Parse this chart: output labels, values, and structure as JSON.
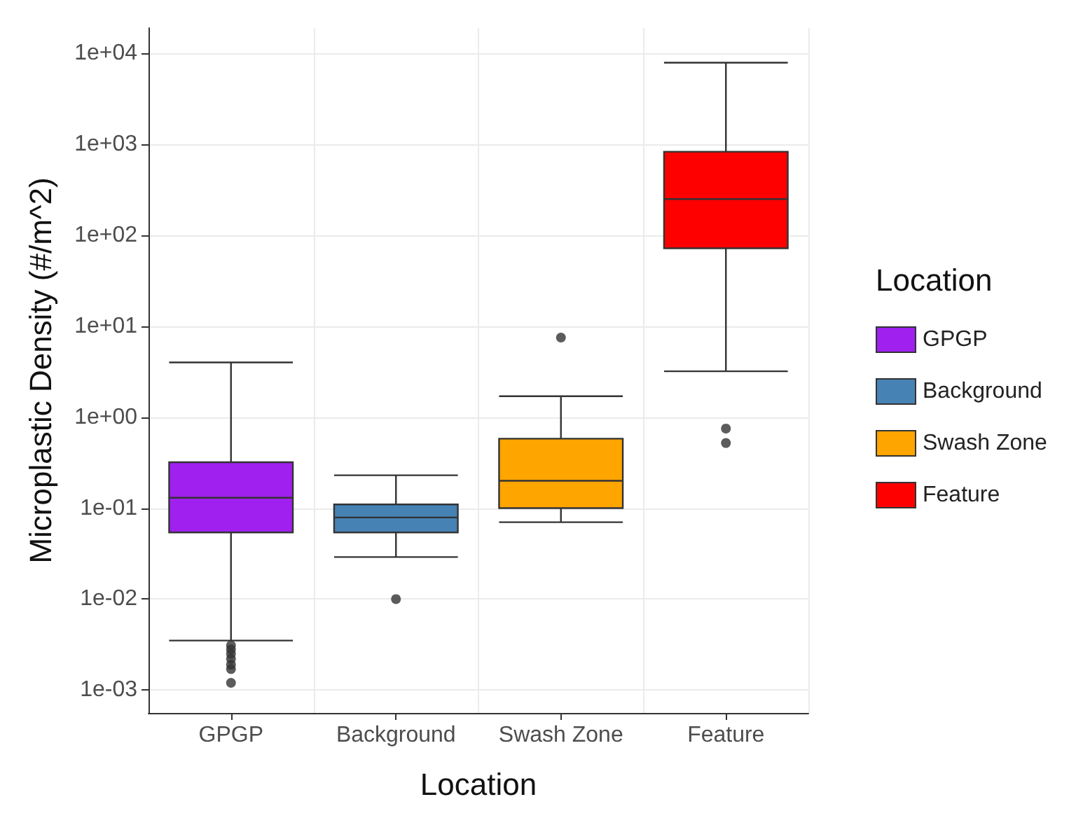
{
  "chart_data": {
    "type": "box",
    "xlabel": "Location",
    "ylabel": "Microplastic Density (#/m^2)",
    "legend_title": "Location",
    "legend": "right",
    "grid": true,
    "log": "y",
    "categories": [
      "GPGP",
      "Background",
      "Swash Zone",
      "Feature"
    ],
    "series": [
      {
        "name": "GPGP",
        "color": "#a020f0",
        "boxes": [
          {
            "low": 0.0035,
            "q1": 0.054,
            "median": 0.13,
            "q3": 0.32,
            "high": 4.0,
            "outliers": [
              0.0031,
              0.0028,
              0.0025,
              0.0022,
              0.0019,
              0.0017,
              0.0012
            ]
          },
          null,
          null,
          null
        ]
      },
      {
        "name": "Background",
        "color": "#4682b4",
        "boxes": [
          null,
          {
            "low": 0.029,
            "q1": 0.054,
            "median": 0.079,
            "q3": 0.11,
            "high": 0.23,
            "outliers": [
              0.01
            ]
          },
          null,
          null
        ]
      },
      {
        "name": "Swash Zone",
        "color": "#ffa500",
        "boxes": [
          null,
          null,
          {
            "low": 0.07,
            "q1": 0.1,
            "median": 0.2,
            "q3": 0.58,
            "high": 1.7,
            "outliers": [
              7.5
            ]
          },
          null
        ]
      },
      {
        "name": "Feature",
        "color": "#ff0000",
        "boxes": [
          null,
          null,
          null,
          {
            "low": 3.2,
            "q1": 72,
            "median": 250,
            "q3": 830,
            "high": 7900,
            "outliers": [
              0.75,
              0.52
            ]
          }
        ]
      }
    ],
    "ylim": [
      0.00056,
      19000
    ],
    "yticks": [
      {
        "value": 0.001,
        "label": "1e-03"
      },
      {
        "value": 0.01,
        "label": "1e-02"
      },
      {
        "value": 0.1,
        "label": "1e-01"
      },
      {
        "value": 1,
        "label": "1e+00"
      },
      {
        "value": 10,
        "label": "1e+01"
      },
      {
        "value": 100,
        "label": "1e+02"
      },
      {
        "value": 1000,
        "label": "1e+03"
      },
      {
        "value": 10000,
        "label": "1e+04"
      }
    ]
  }
}
